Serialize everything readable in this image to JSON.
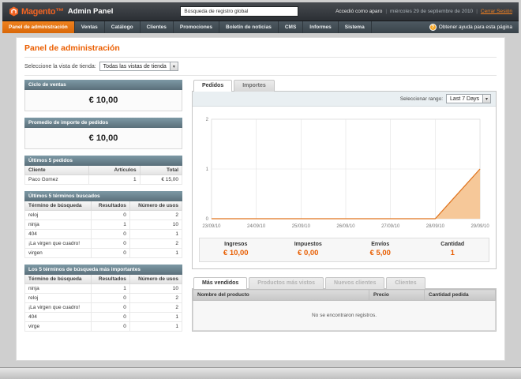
{
  "icons": {
    "help": "?",
    "select_arrow": "▾"
  },
  "colors": {
    "accent_orange": "#eb5e00",
    "nav_active": "#e96d00",
    "header_bg": "#33383d",
    "section_head": "#64808c"
  },
  "header": {
    "logo_text": "Magento™",
    "logo_suffix": "Admin Panel",
    "search_value": "Búsqueda de registro global",
    "user_text": "Accedió como aparo",
    "date_text": "miércoles 29 de septiembre de 2010",
    "logout_label": "Cerrar Sesión"
  },
  "nav": {
    "items": [
      {
        "label": "Panel de administración",
        "active": true
      },
      {
        "label": "Ventas"
      },
      {
        "label": "Catálogo"
      },
      {
        "label": "Clientes"
      },
      {
        "label": "Promociones"
      },
      {
        "label": "Boletín de noticias"
      },
      {
        "label": "CMS"
      },
      {
        "label": "Informes"
      },
      {
        "label": "Sistema"
      }
    ],
    "help_label": "Obtener ayuda para esta página"
  },
  "page": {
    "title": "Panel de administración",
    "store_view_label": "Seleccione la vista de tienda:",
    "store_view_value": "Todas las vistas de tienda"
  },
  "left": {
    "lifetime_sales": {
      "title": "Ciclo de ventas",
      "value": "€ 10,00"
    },
    "average_orders": {
      "title": "Promedio de importe de pedidos",
      "value": "€ 10,00"
    },
    "last_orders": {
      "title": "Últimos 5 pedidos",
      "headers": [
        "Cliente",
        "Artículos",
        "Total"
      ],
      "rows": [
        [
          "Paco Gomez",
          "1",
          "€ 15,00"
        ]
      ]
    },
    "last_search_terms": {
      "title": "Últimos 5 términos buscados",
      "headers": [
        "Término de búsqueda",
        "Resultados",
        "Número de usos"
      ],
      "rows": [
        [
          "reloj",
          "0",
          "2"
        ],
        [
          "ninja",
          "1",
          "10"
        ],
        [
          "404",
          "0",
          "1"
        ],
        [
          "¡La virgen que cuadro!",
          "0",
          "2"
        ],
        [
          "virgen",
          "0",
          "1"
        ]
      ]
    },
    "top_search_terms": {
      "title": "Los 5 términos de búsqueda más importantes",
      "headers": [
        "Término de búsqueda",
        "Resultados",
        "Número de usos"
      ],
      "rows": [
        [
          "ninja",
          "1",
          "10"
        ],
        [
          "reloj",
          "0",
          "2"
        ],
        [
          "¡La virgen que cuadro!",
          "0",
          "2"
        ],
        [
          "404",
          "0",
          "1"
        ],
        [
          "virge",
          "0",
          "1"
        ]
      ]
    }
  },
  "main": {
    "tabs": [
      {
        "label": "Pedidos",
        "active": true
      },
      {
        "label": "Importes"
      }
    ],
    "range_label": "Seleccionar rango:",
    "range_value": "Last 7 Days",
    "stats": [
      {
        "label": "Ingresos",
        "value": "€ 10,00"
      },
      {
        "label": "Impuestos",
        "value": "€ 0,00"
      },
      {
        "label": "Envíos",
        "value": "€ 5,00"
      },
      {
        "label": "Cantidad",
        "value": "1"
      }
    ],
    "bottom_tabs": [
      {
        "label": "Más vendidos",
        "active": true
      },
      {
        "label": "Productos más vistos"
      },
      {
        "label": "Nuevos clientes"
      },
      {
        "label": "Clientes"
      }
    ],
    "products_table": {
      "headers": [
        "Nombre del producto",
        "Precio",
        "Cantidad pedida"
      ],
      "empty_message": "No se encontraron registros."
    }
  },
  "chart_data": {
    "type": "area",
    "title": "Pedidos",
    "x": [
      "23/09/10",
      "24/09/10",
      "25/09/10",
      "26/09/10",
      "27/09/10",
      "28/09/10",
      "29/09/10"
    ],
    "series": [
      {
        "name": "Pedidos",
        "values": [
          0,
          0,
          0,
          0,
          0,
          0,
          1
        ]
      }
    ],
    "ylim": [
      0,
      2
    ],
    "yticks": [
      0,
      1,
      2
    ],
    "grid": true,
    "legend": false,
    "line_color": "#e0751f",
    "fill_color": "#f6c899"
  }
}
